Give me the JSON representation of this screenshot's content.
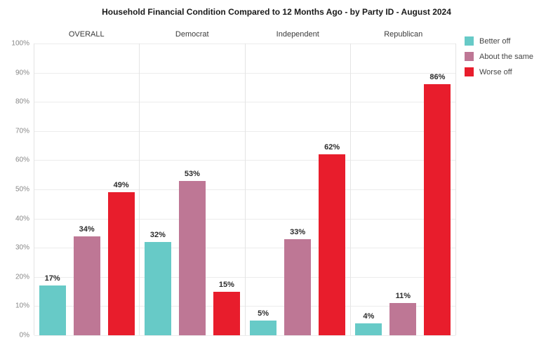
{
  "chart_data": {
    "type": "bar",
    "title": "Household Financial Condition Compared to 12 Months Ago - by Party ID - August 2024",
    "categories": [
      "OVERALL",
      "Democrat",
      "Independent",
      "Republican"
    ],
    "series": [
      {
        "name": "Better off",
        "color": "#67CAC7",
        "values": [
          17,
          32,
          5,
          4
        ]
      },
      {
        "name": "About the same",
        "color": "#BE7795",
        "values": [
          34,
          53,
          33,
          11
        ]
      },
      {
        "name": "Worse off",
        "color": "#E81D2C",
        "values": [
          49,
          15,
          62,
          86
        ]
      }
    ],
    "value_suffix": "%",
    "y_axis": {
      "min": 0,
      "max": 100,
      "ticks": [
        "100%",
        "90%",
        "80%",
        "70%",
        "60%",
        "50%",
        "40%",
        "30%",
        "20%",
        "10%",
        "0%"
      ]
    },
    "grid": true,
    "legend_position": "top-right"
  },
  "theme": {
    "background": "#ffffff",
    "grid_color": "#ececec",
    "panel_border_color": "#e4e4e4",
    "axis_label_color": "#878787",
    "header_color": "#3a3a3a",
    "value_label_color": "#2b2b2b",
    "title_color": "#1a1a1a",
    "legend_text_color": "#454545"
  }
}
